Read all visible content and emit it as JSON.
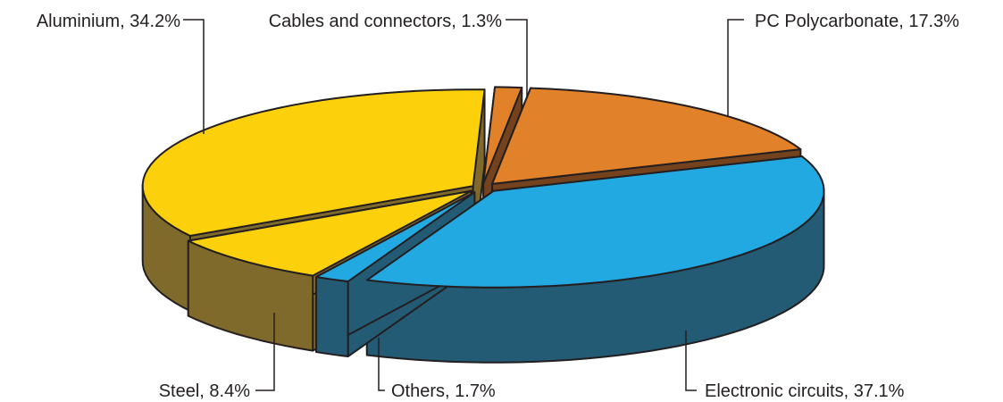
{
  "chart_data": {
    "type": "pie",
    "style": "3d-exploded",
    "slices": [
      {
        "name": "Cables and connectors",
        "value": 1.3,
        "label": "Cables and connectors, 1.3%",
        "top_color": "#e1812a",
        "side_color": "#74421c"
      },
      {
        "name": "PC Polycarbonate",
        "value": 17.3,
        "label": "PC Polycarbonate, 17.3%",
        "top_color": "#e1812a",
        "side_color": "#74421c"
      },
      {
        "name": "Electronic circuits",
        "value": 37.1,
        "label": "Electronic circuits, 37.1%",
        "top_color": "#22a9e1",
        "side_color": "#235a74"
      },
      {
        "name": "Others",
        "value": 1.7,
        "label": "Others, 1.7%",
        "top_color": "#22a9e1",
        "side_color": "#235a74"
      },
      {
        "name": "Steel",
        "value": 8.4,
        "label": "Steel, 8.4%",
        "top_color": "#fcd10b",
        "side_color": "#806a2b"
      },
      {
        "name": "Aluminium",
        "value": 34.2,
        "label": "Aluminium, 34.2%",
        "top_color": "#fcd10b",
        "side_color": "#806a2b"
      }
    ]
  }
}
